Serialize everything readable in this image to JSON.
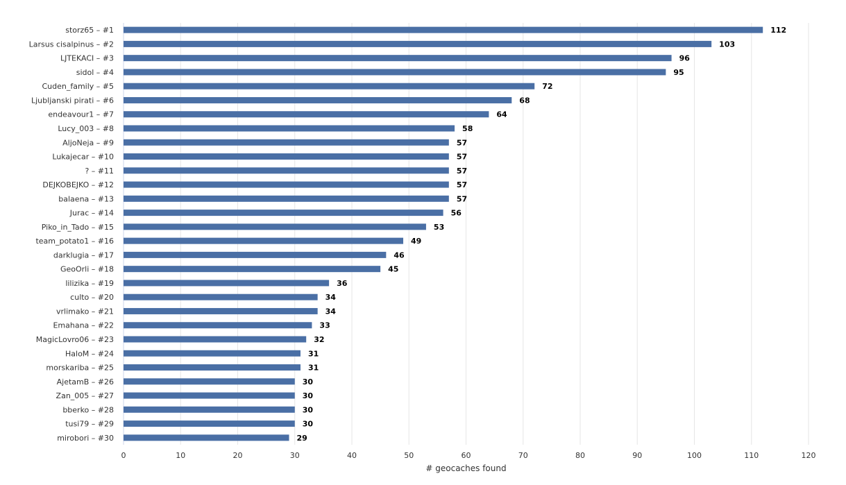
{
  "colors": {
    "bar": "#4a6fa5",
    "grid": "#e6e6e6",
    "axis": "#ccd6eb",
    "text": "#333333"
  },
  "chart_data": {
    "type": "bar",
    "orientation": "horizontal",
    "categories": [
      "storz65 – #1",
      "Larsus cisalpinus – #2",
      "LJTEKACI – #3",
      "sidol – #4",
      "Cuden_family – #5",
      "Ljubljanski pirati – #6",
      "endeavour1 – #7",
      "Lucy_003 – #8",
      "AljoNeja – #9",
      "Lukajecar – #10",
      "? – #11",
      "DEJKOBEJKO – #12",
      "balaena – #13",
      "Jurac – #14",
      "Piko_in_Tado – #15",
      "team_potato1 – #16",
      "darklugia – #17",
      "GeoOrli – #18",
      "lilizika – #19",
      "culto – #20",
      "vrlimako – #21",
      "Emahana – #22",
      "MagicLovro06 – #23",
      "HaloM – #24",
      "morskariba – #25",
      "AjetamB – #26",
      "Zan_005 – #27",
      "bberko – #28",
      "tusi79 – #29",
      "mirobori – #30"
    ],
    "values": [
      112,
      103,
      96,
      95,
      72,
      68,
      64,
      58,
      57,
      57,
      57,
      57,
      57,
      56,
      53,
      49,
      46,
      45,
      36,
      34,
      34,
      33,
      32,
      31,
      31,
      30,
      30,
      30,
      30,
      29
    ],
    "xlabel": "# geocaches found",
    "ylabel": "",
    "title": "",
    "xlim": [
      0,
      120
    ],
    "xticks": [
      0,
      10,
      20,
      30,
      40,
      50,
      60,
      70,
      80,
      90,
      100,
      110,
      120
    ],
    "grid": true,
    "data_labels": true,
    "legend": "none"
  }
}
